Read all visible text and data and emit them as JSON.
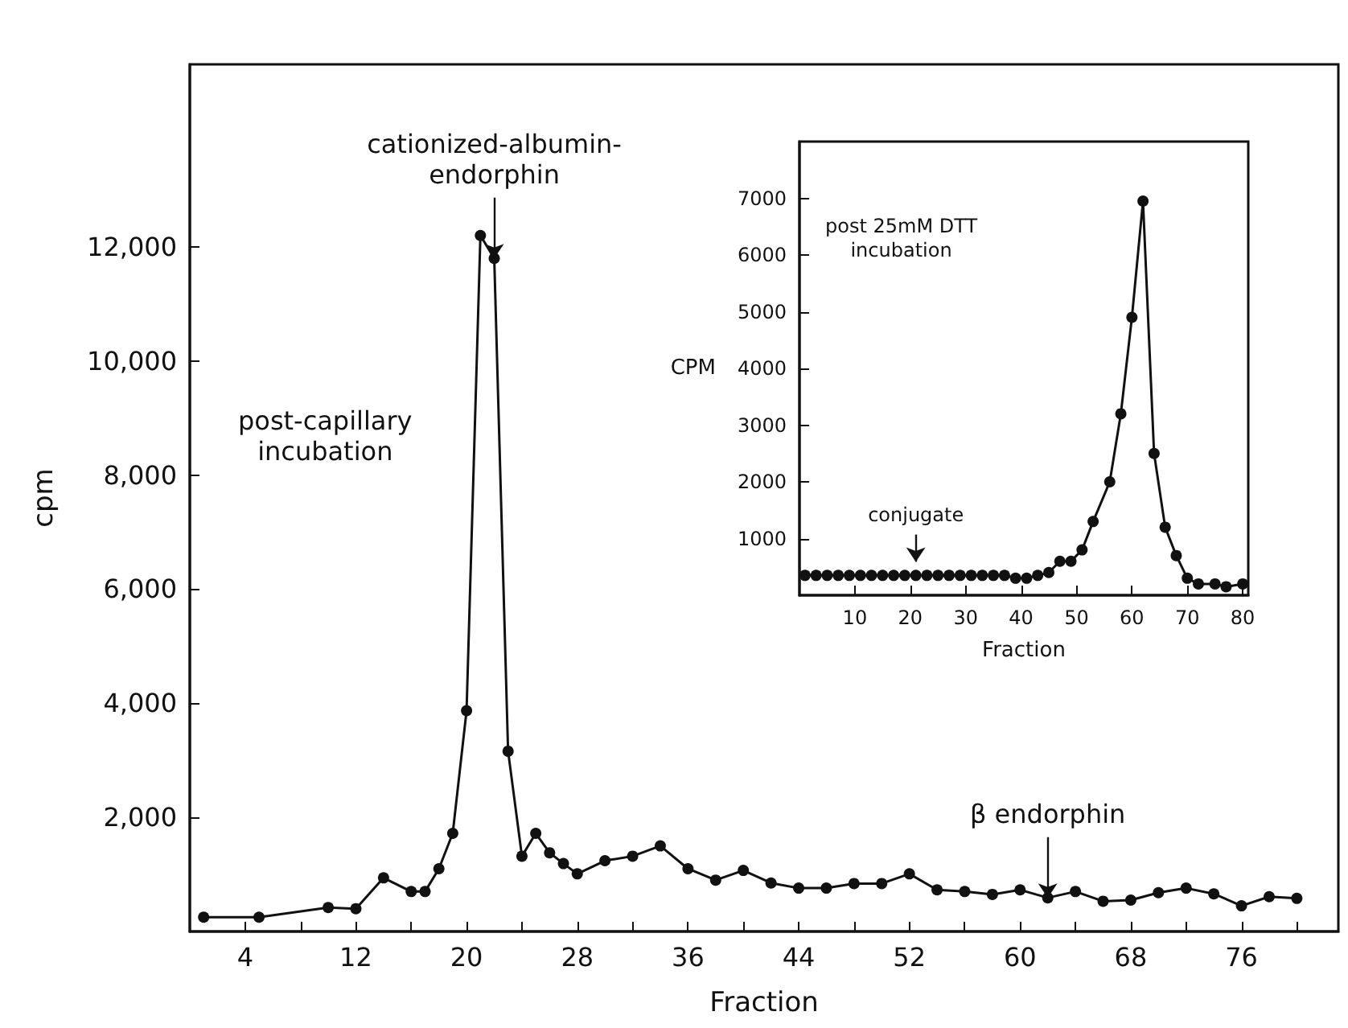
{
  "chart_data": [
    {
      "type": "line",
      "xlabel": "Fraction",
      "ylabel": "cpm",
      "marker": "circle",
      "line_style": "solid",
      "x": [
        1,
        5,
        10,
        12,
        14,
        16,
        17,
        18,
        19,
        20,
        21,
        22,
        23,
        24,
        25,
        26,
        27,
        28,
        30,
        32,
        34,
        36,
        38,
        40,
        42,
        44,
        46,
        48,
        50,
        52,
        54,
        56,
        58,
        60,
        62,
        64,
        66,
        68,
        70,
        72,
        74,
        76,
        78,
        80
      ],
      "series": [
        {
          "color": "#111111",
          "values": [
            250,
            250,
            420,
            400,
            940,
            700,
            700,
            1100,
            1720,
            3870,
            12200,
            11800,
            3160,
            1320,
            1720,
            1380,
            1190,
            1010,
            1240,
            1320,
            1500,
            1100,
            900,
            1070,
            850,
            760,
            760,
            840,
            840,
            1010,
            730,
            700,
            650,
            730,
            590,
            700,
            530,
            550,
            680,
            760,
            660,
            450,
            610,
            580
          ]
        }
      ],
      "xlim": [
        0,
        83
      ],
      "ylim": [
        0,
        15200
      ],
      "xticks": [
        4,
        {
          "value": 8,
          "label": null
        },
        12,
        {
          "value": 16,
          "label": null
        },
        20,
        {
          "value": 24,
          "label": null
        },
        28,
        {
          "value": 32,
          "label": null
        },
        36,
        {
          "value": 40,
          "label": null
        },
        44,
        {
          "value": 48,
          "label": null
        },
        52,
        {
          "value": 56,
          "label": null
        },
        60,
        {
          "value": 64,
          "label": null
        },
        68,
        {
          "value": 72,
          "label": null
        },
        76,
        {
          "value": 80,
          "label": null
        }
      ],
      "yticks": [
        {
          "value": 2000,
          "label": "2,000"
        },
        {
          "value": 4000,
          "label": "4,000"
        },
        {
          "value": 6000,
          "label": "6,000"
        },
        {
          "value": 8000,
          "label": "8,000"
        },
        {
          "value": 10000,
          "label": "10,000"
        },
        {
          "value": 12000,
          "label": "12,000"
        }
      ],
      "annotations": [
        {
          "text": "cationized-albumin-\nendorphin",
          "x": 22,
          "y": 11800
        },
        {
          "text": "β endorphin",
          "x": 62,
          "y": 590
        },
        "post-capillary\nincubation"
      ]
    },
    {
      "type": "line",
      "xlabel": "Fraction",
      "ylabel": "CPM",
      "marker": "circle",
      "line_style": "solid",
      "x": [
        1,
        3,
        5,
        7,
        9,
        11,
        13,
        15,
        17,
        19,
        21,
        23,
        25,
        27,
        29,
        31,
        33,
        35,
        37,
        39,
        41,
        43,
        45,
        47,
        49,
        51,
        53,
        56,
        58,
        60,
        62,
        64,
        66,
        68,
        70,
        72,
        75,
        77,
        80
      ],
      "series": [
        {
          "color": "#111111",
          "values": [
            350,
            350,
            350,
            350,
            350,
            350,
            350,
            350,
            350,
            350,
            350,
            350,
            350,
            350,
            350,
            350,
            350,
            350,
            350,
            300,
            300,
            350,
            400,
            600,
            600,
            800,
            1300,
            2000,
            3200,
            4900,
            6950,
            2500,
            1200,
            700,
            300,
            200,
            200,
            150,
            200
          ]
        }
      ],
      "xlim": [
        0,
        81
      ],
      "ylim": [
        0,
        8000
      ],
      "xticks": [
        10,
        20,
        30,
        40,
        50,
        60,
        70,
        80
      ],
      "yticks": [
        1000,
        2000,
        3000,
        4000,
        5000,
        6000,
        7000
      ],
      "annotations": [
        {
          "text": "conjugate",
          "x": 21,
          "y": 590
        },
        "post 25mM DTT\nincubation"
      ]
    }
  ]
}
